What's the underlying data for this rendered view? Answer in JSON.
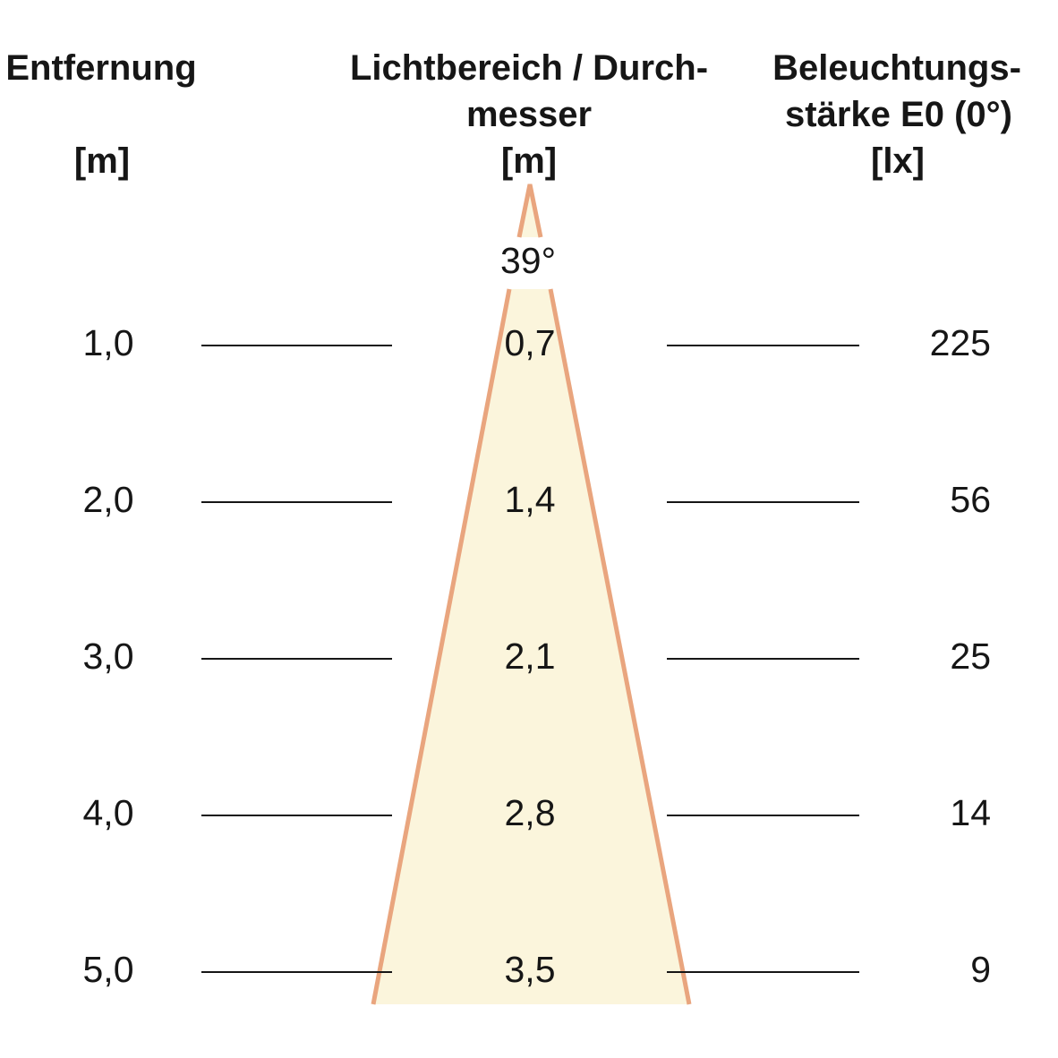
{
  "header": {
    "distance": {
      "title": "Entfernung",
      "unit": "[m]"
    },
    "diameter": {
      "title_line1": "Lichtbereich / Durch-",
      "title_line2": "messer",
      "unit": "[m]"
    },
    "illuminance": {
      "title_line1": "Beleuchtungs-",
      "title_line2": "stärke E0 (0°)",
      "unit": "[lx]"
    }
  },
  "beam_angle_label": "39°",
  "rows": [
    {
      "distance": "1,0",
      "diameter": "0,7",
      "illuminance": "225"
    },
    {
      "distance": "2,0",
      "diameter": "1,4",
      "illuminance": "56"
    },
    {
      "distance": "3,0",
      "diameter": "2,1",
      "illuminance": "25"
    },
    {
      "distance": "4,0",
      "diameter": "2,8",
      "illuminance": "14"
    },
    {
      "distance": "5,0",
      "diameter": "3,5",
      "illuminance": "9"
    }
  ],
  "colors": {
    "cone_fill": "#FBF5DC",
    "cone_stroke": "#E9A57E",
    "line": "#161616",
    "text": "#161616"
  },
  "chart_data": {
    "type": "table",
    "title": "Light beam cone diagram",
    "beam_angle_deg": 39,
    "columns": [
      "Entfernung [m]",
      "Lichtbereich / Durchmesser [m]",
      "Beleuchtungsstärke E0 (0°) [lx]"
    ],
    "distances_m": [
      1.0,
      2.0,
      3.0,
      4.0,
      5.0
    ],
    "diameters_m": [
      0.7,
      1.4,
      2.1,
      2.8,
      3.5
    ],
    "illuminance_lx": [
      225,
      56,
      25,
      14,
      9
    ],
    "layout": "beam cone opens downward from apex; rows every 1 m distance",
    "legend_position": "none",
    "grid": "off"
  }
}
